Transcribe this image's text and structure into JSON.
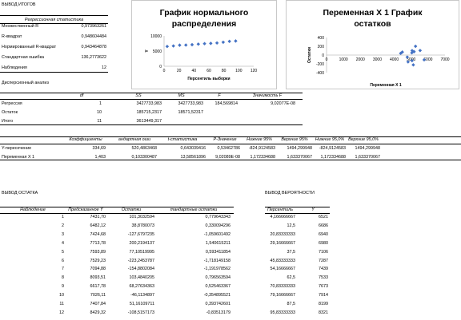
{
  "summary": {
    "title": "ВЫВОД ИТОГОВ",
    "regression_stats_header": "Регрессионная статистика",
    "rows": [
      {
        "label": "Множественный R",
        "value": "0,973963261"
      },
      {
        "label": "R-квадрат",
        "value": "0,948604484"
      },
      {
        "label": "Нормированный R-квадрат",
        "value": "0,943464878"
      },
      {
        "label": "Стандартная ошибка",
        "value": "136,2773622"
      },
      {
        "label": "Наблюдения",
        "value": "12"
      }
    ]
  },
  "anova": {
    "title": "Дисперсионный анализ",
    "headers": [
      "",
      "df",
      "SS",
      "MS",
      "F",
      "Значимость F"
    ],
    "rows": [
      [
        "Регрессия",
        "1",
        "3427733,983",
        "3427733,983",
        "184,569814",
        "9,02077E-08"
      ],
      [
        "Остаток",
        "10",
        "185715,2317",
        "18571,52317",
        "",
        ""
      ],
      [
        "Итого",
        "11",
        "3613449,317",
        "",
        "",
        ""
      ]
    ]
  },
  "coefficients": {
    "headers": [
      "",
      "Коэффициенты",
      "андартная оши",
      "t-статистика",
      "P-Значение",
      "Нижние 95%",
      "Верхние 95%",
      "Нижние 95,0%",
      "Верхние 95,0%"
    ],
    "rows": [
      [
        "Y-пересечение",
        "334,69",
        "520,4863468",
        "0,643039416",
        "0,53462786",
        "-824,9124583",
        "1494,299948",
        "-824,9124583",
        "1494,299948"
      ],
      [
        "Переменная X 1",
        "1,403",
        "0,103300487",
        "13,58561896",
        "9,02089E-08",
        "1,172334688",
        "1,633370067",
        "1,172334688",
        "1,633370067"
      ]
    ]
  },
  "residuals": {
    "title": "ВЫВОД ОСТАТКА",
    "headers": [
      "Наблюдение",
      "Предсказанное Y",
      "Остатки",
      "тандартные остатки"
    ],
    "rows": [
      [
        "1",
        "7431,70",
        "101,3032594",
        "0,779643343"
      ],
      [
        "2",
        "6482,12",
        "38,8780073",
        "0,330094296"
      ],
      [
        "3",
        "7424,68",
        "-127,6797235",
        "-1,059601492"
      ],
      [
        "4",
        "7713,78",
        "200,2194137",
        "1,540615211"
      ],
      [
        "5",
        "7593,89",
        "77,10519995",
        "0,593411854"
      ],
      [
        "6",
        "7529,23",
        "-223,2453787",
        "-1,718149158"
      ],
      [
        "7",
        "7094,88",
        "-154,8802084",
        "-1,191978562"
      ],
      [
        "8",
        "8093,51",
        "103,4840205",
        "0,796563594"
      ],
      [
        "9",
        "6617,78",
        "68,27634363",
        "0,525463367"
      ],
      [
        "10",
        "7026,11",
        "-46,1134897",
        "-0,354895521"
      ],
      [
        "11",
        "7407,84",
        "51,16109711",
        "0,393742601"
      ],
      [
        "12",
        "8429,32",
        "-108,5157173",
        "-0,83513179"
      ]
    ]
  },
  "probability": {
    "title": "ВЫВОД ВЕРОЯТНОСТИ",
    "headers": [
      "Персентиль",
      "Y"
    ],
    "rows": [
      [
        "4,166666667",
        "6521"
      ],
      [
        "12,5",
        "6686"
      ],
      [
        "20,83333333",
        "6940"
      ],
      [
        "29,16666667",
        "6980"
      ],
      [
        "37,5",
        "7106"
      ],
      [
        "45,83333333",
        "7287"
      ],
      [
        "54,16666667",
        "7439"
      ],
      [
        "62,5",
        "7533"
      ],
      [
        "70,83333333",
        "7673"
      ],
      [
        "79,16666667",
        "7914"
      ],
      [
        "87,5",
        "8199"
      ],
      [
        "95,83333333",
        "8321"
      ]
    ]
  },
  "charts": {
    "normal": {
      "title_line1": "График нормального",
      "title_line2": "распределения",
      "ylabel": "Y",
      "xlabel": "Персентиль выборки",
      "y_ticks": [
        "10000",
        "5000",
        "0"
      ],
      "x_ticks": [
        "0",
        "20",
        "40",
        "60",
        "80",
        "100",
        "120"
      ],
      "marker_color": "#4472c4"
    },
    "residual": {
      "title_line1": "Переменная X 1 График",
      "title_line2": "остатков",
      "ylabel": "Остатки",
      "xlabel": "Переменная X 1",
      "y_ticks": [
        "400",
        "200",
        "0",
        "-200",
        "-400"
      ],
      "x_ticks": [
        "0",
        "1000",
        "2000",
        "3000",
        "4000",
        "5000",
        "6000",
        "7000"
      ],
      "marker_color": "#4472c4"
    }
  },
  "chart_data": [
    {
      "type": "scatter",
      "title": "График нормального распределения",
      "xlabel": "Персентиль выборки",
      "ylabel": "Y",
      "xlim": [
        0,
        120
      ],
      "ylim": [
        0,
        10000
      ],
      "x": [
        4.17,
        12.5,
        20.83,
        29.17,
        37.5,
        45.83,
        54.17,
        62.5,
        70.83,
        79.17,
        87.5,
        95.83
      ],
      "y": [
        6521,
        6686,
        6940,
        6980,
        7106,
        7287,
        7439,
        7533,
        7673,
        7914,
        8199,
        8321
      ]
    },
    {
      "type": "scatter",
      "title": "Переменная X 1 График остатков",
      "xlabel": "Переменная X 1",
      "ylabel": "Остатки",
      "xlim": [
        0,
        7000
      ],
      "ylim": [
        -400,
        400
      ],
      "x": [
        5058,
        4381,
        5053,
        5259,
        5174,
        5128,
        4818,
        5530,
        4478,
        4770,
        5042,
        5769
      ],
      "y": [
        101.3,
        38.9,
        -127.7,
        200.2,
        77.1,
        -223.2,
        -154.9,
        103.5,
        68.3,
        -46.1,
        51.2,
        -108.5
      ]
    }
  ]
}
